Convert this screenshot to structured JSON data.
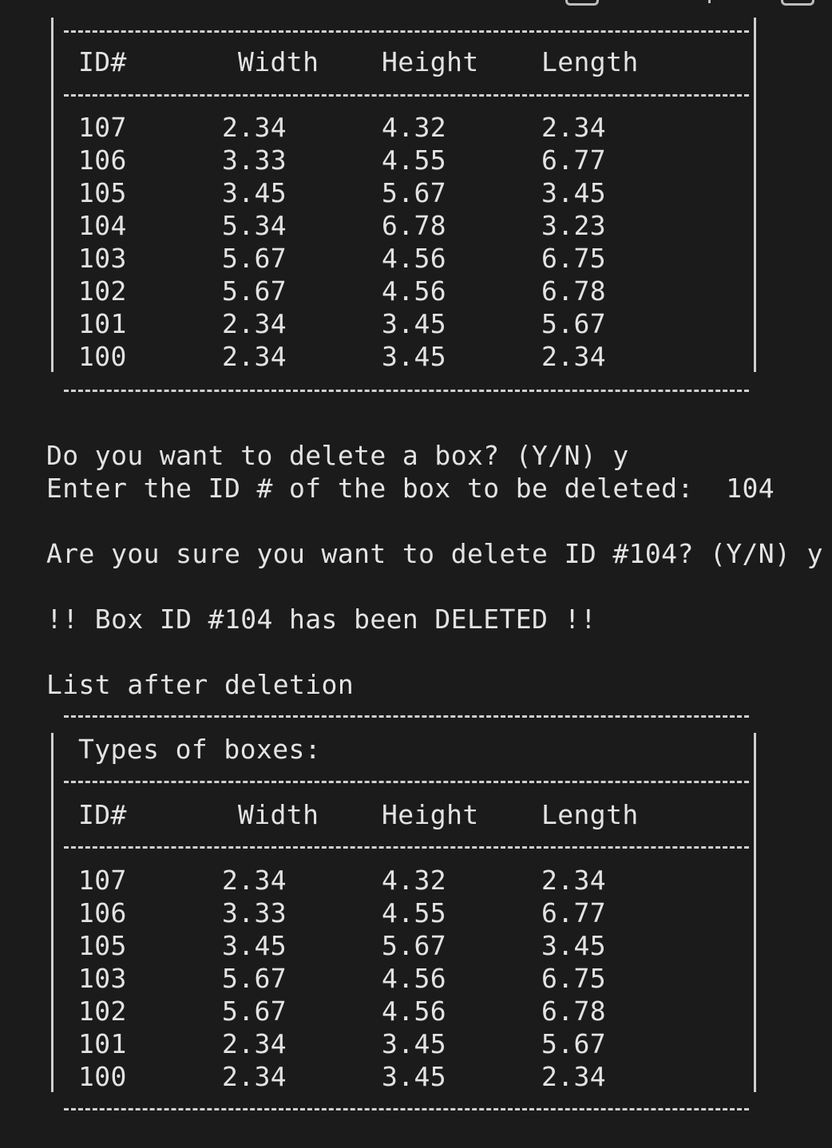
{
  "table_before": {
    "headers": [
      "ID#",
      "Width",
      "Height",
      "Length"
    ],
    "rows": [
      [
        "107",
        "2.34",
        "4.32",
        "2.34"
      ],
      [
        "106",
        "3.33",
        "4.55",
        "6.77"
      ],
      [
        "105",
        "3.45",
        "5.67",
        "3.45"
      ],
      [
        "104",
        "5.34",
        "6.78",
        "3.23"
      ],
      [
        "103",
        "5.67",
        "4.56",
        "6.75"
      ],
      [
        "102",
        "5.67",
        "4.56",
        "6.78"
      ],
      [
        "101",
        "2.34",
        "3.45",
        "5.67"
      ],
      [
        "100",
        "2.34",
        "3.45",
        "2.34"
      ]
    ]
  },
  "prompts": {
    "delete_question": "Do you want to delete a box? (Y/N) y",
    "enter_id": "Enter the ID # of the box to be deleted:  104",
    "confirm": "Are you sure you want to delete ID #104? (Y/N) y",
    "deleted_msg": "!! Box ID #104 has been DELETED !!",
    "list_after": "List after deletion"
  },
  "table_after": {
    "title": "Types of boxes:",
    "headers": [
      "ID#",
      "Width",
      "Height",
      "Length"
    ],
    "rows": [
      [
        "107",
        "2.34",
        "4.32",
        "2.34"
      ],
      [
        "106",
        "3.33",
        "4.55",
        "6.77"
      ],
      [
        "105",
        "3.45",
        "5.67",
        "3.45"
      ],
      [
        "103",
        "5.67",
        "4.56",
        "6.75"
      ],
      [
        "102",
        "5.67",
        "4.56",
        "6.78"
      ],
      [
        "101",
        "2.34",
        "3.45",
        "5.67"
      ],
      [
        "100",
        "2.34",
        "3.45",
        "2.34"
      ]
    ]
  },
  "colors": {
    "background": "#1b1b1b",
    "text": "#e3e3e3",
    "border": "#cfcfcf"
  }
}
